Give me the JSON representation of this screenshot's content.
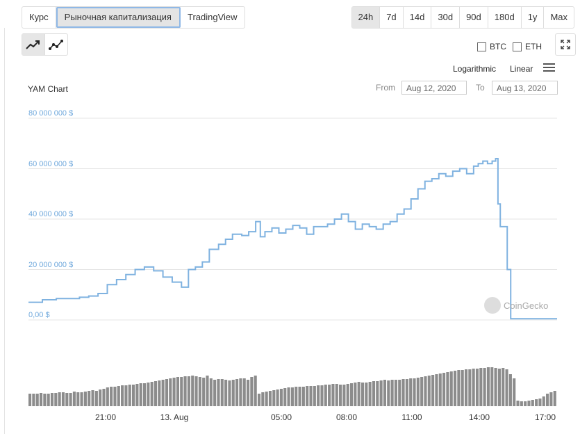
{
  "tabs": [
    {
      "label": "Курс",
      "active": false
    },
    {
      "label": "Рыночная капитализация",
      "active": true
    },
    {
      "label": "TradingView",
      "active": false
    }
  ],
  "ranges": [
    {
      "label": "24h",
      "active": true
    },
    {
      "label": "7d",
      "active": false
    },
    {
      "label": "14d",
      "active": false
    },
    {
      "label": "30d",
      "active": false
    },
    {
      "label": "90d",
      "active": false
    },
    {
      "label": "180d",
      "active": false
    },
    {
      "label": "1y",
      "active": false
    },
    {
      "label": "Max",
      "active": false
    }
  ],
  "compare": {
    "btc": "BTC",
    "eth": "ETH"
  },
  "scale": {
    "log": "Logarithmic",
    "linear": "Linear"
  },
  "chart_title": "YAM Chart",
  "range_inputs": {
    "from_label": "From",
    "from": "Aug 12, 2020",
    "to_label": "To",
    "to": "Aug 13, 2020"
  },
  "watermark": "CoinGecko",
  "colors": {
    "line": "#7fb2e0",
    "volume": "#8c8c8c",
    "grid": "#e6e6e6",
    "axis_text": "#6fa8dc"
  },
  "chart_data": {
    "type": "line",
    "title": "YAM Chart",
    "ylim": [
      0,
      80000000
    ],
    "y_ticks": [
      {
        "value": 0,
        "label": "0,00 $"
      },
      {
        "value": 20000000,
        "label": "20 000 000 $"
      },
      {
        "value": 40000000,
        "label": "40 000 000 $"
      },
      {
        "value": 60000000,
        "label": "60 000 000 $"
      },
      {
        "value": 80000000,
        "label": "80 000 000 $"
      }
    ],
    "xlim": [
      18.8,
      17.6
    ],
    "x_ticks": [
      {
        "value": 21,
        "label": "21:00"
      },
      {
        "value": 24,
        "label": "13. Aug"
      },
      {
        "value": 29,
        "label": "05:00"
      },
      {
        "value": 32,
        "label": "08:00"
      },
      {
        "value": 35,
        "label": "11:00"
      },
      {
        "value": 38,
        "label": "14:00"
      },
      {
        "value": 41,
        "label": "17:00"
      }
    ],
    "x_unit": "hours from 00:00 Aug 12 (UTC+3)",
    "series": [
      {
        "x": [
          18.8,
          19.4,
          20.0,
          20.6,
          21.0,
          21.4,
          21.8,
          22.2,
          22.6,
          23.0,
          23.4,
          23.8,
          24.2,
          24.6,
          25.0,
          25.4,
          25.7,
          26.0,
          26.3,
          26.6,
          27.0,
          27.3,
          27.6,
          28.0,
          28.3,
          28.6,
          28.8,
          29.0,
          29.3,
          29.6,
          29.9,
          30.2,
          30.5,
          30.8,
          31.1,
          31.4,
          31.7,
          32.0,
          32.3,
          32.6,
          32.9,
          33.2,
          33.5,
          33.8,
          34.1,
          34.4,
          34.7,
          35.0,
          35.3,
          35.6,
          35.9,
          36.2,
          36.5,
          36.8,
          37.1,
          37.4,
          37.7,
          38.0,
          38.2,
          38.4,
          38.6,
          38.8,
          38.95,
          39.05,
          39.15,
          39.25,
          39.45,
          39.6,
          41.6
        ],
        "y": [
          7000000,
          8000000,
          8500000,
          8500000,
          9000000,
          9500000,
          10500000,
          14000000,
          16000000,
          18000000,
          20000000,
          21000000,
          19500000,
          17000000,
          15000000,
          13000000,
          20000000,
          21000000,
          23000000,
          28000000,
          30000000,
          32000000,
          34000000,
          33500000,
          35000000,
          39000000,
          33000000,
          35000000,
          36500000,
          34500000,
          36000000,
          37500000,
          36500000,
          34000000,
          37000000,
          37000000,
          38000000,
          40000000,
          42000000,
          39000000,
          36000000,
          38000000,
          37000000,
          36000000,
          38000000,
          39000000,
          42000000,
          44000000,
          48000000,
          52000000,
          55000000,
          56000000,
          58000000,
          57000000,
          59000000,
          60000000,
          58000000,
          61000000,
          62000000,
          63000000,
          62000000,
          63000000,
          64000000,
          46000000,
          37000000,
          37000000,
          20000000,
          500000,
          500000
        ]
      }
    ],
    "volume": [
      18,
      18,
      18,
      19,
      18,
      18,
      19,
      19,
      20,
      20,
      19,
      19,
      21,
      20,
      20,
      21,
      22,
      23,
      22,
      24,
      25,
      27,
      28,
      28,
      29,
      30,
      30,
      31,
      31,
      32,
      33,
      33,
      34,
      35,
      36,
      37,
      38,
      39,
      40,
      41,
      42,
      42,
      43,
      43,
      44,
      43,
      42,
      41,
      44,
      40,
      38,
      39,
      39,
      38,
      37,
      38,
      39,
      40,
      40,
      38,
      42,
      44,
      18,
      20,
      21,
      22,
      23,
      24,
      25,
      26,
      27,
      27,
      28,
      28,
      28,
      29,
      29,
      29,
      30,
      30,
      31,
      31,
      32,
      32,
      31,
      31,
      32,
      33,
      34,
      35,
      34,
      34,
      35,
      36,
      36,
      37,
      38,
      37,
      38,
      38,
      38,
      39,
      39,
      40,
      40,
      41,
      42,
      43,
      44,
      45,
      46,
      47,
      48,
      49,
      50,
      51,
      52,
      52,
      53,
      53,
      54,
      54,
      55,
      55,
      56,
      56,
      55,
      54,
      55,
      53,
      46,
      40,
      8,
      7,
      7,
      8,
      9,
      10,
      11,
      14,
      18,
      20,
      22
    ]
  }
}
